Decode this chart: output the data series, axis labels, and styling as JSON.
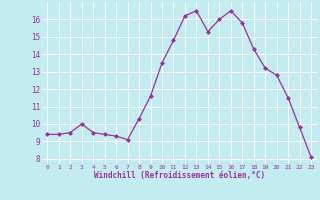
{
  "x": [
    0,
    1,
    2,
    3,
    4,
    5,
    6,
    7,
    8,
    9,
    10,
    11,
    12,
    13,
    14,
    15,
    16,
    17,
    18,
    19,
    20,
    21,
    22,
    23
  ],
  "y": [
    9.4,
    9.4,
    9.5,
    10.0,
    9.5,
    9.4,
    9.3,
    9.1,
    10.3,
    11.6,
    13.5,
    14.8,
    16.2,
    16.5,
    15.3,
    16.0,
    16.5,
    15.8,
    14.3,
    13.2,
    12.8,
    11.5,
    9.8,
    8.1
  ],
  "line_color": "#9B30A0",
  "marker": "D",
  "marker_size": 2,
  "bg_color": "#C2ECF0",
  "grid_color": "#FFFFFF",
  "xlabel": "Windchill (Refroidissement éolien,°C)",
  "xlabel_color": "#9B30A0",
  "tick_color": "#9B30A0",
  "ylim": [
    7.7,
    17.0
  ],
  "xlim": [
    -0.5,
    23.5
  ],
  "yticks": [
    8,
    9,
    10,
    11,
    12,
    13,
    14,
    15,
    16
  ],
  "xticks": [
    0,
    1,
    2,
    3,
    4,
    5,
    6,
    7,
    8,
    9,
    10,
    11,
    12,
    13,
    14,
    15,
    16,
    17,
    18,
    19,
    20,
    21,
    22,
    23
  ],
  "xtick_labels": [
    "0",
    "1",
    "2",
    "3",
    "4",
    "5",
    "6",
    "7",
    "8",
    "9",
    "10",
    "11",
    "12",
    "13",
    "14",
    "15",
    "16",
    "17",
    "18",
    "19",
    "20",
    "21",
    "22",
    "23"
  ]
}
